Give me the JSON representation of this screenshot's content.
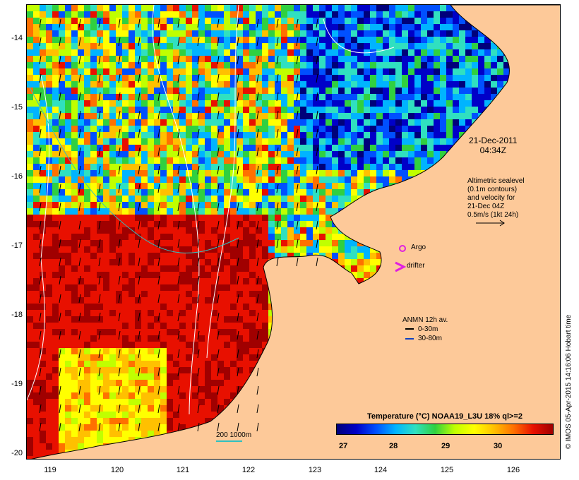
{
  "map": {
    "date_line1": "21-Dec-2011",
    "date_line2": "04:34Z",
    "altimetry_lines": [
      "Altimetric sealevel",
      "(0.1m contours)",
      "and velocity for",
      "21-Dec 04Z",
      "0.5m/s (1kt 24h)"
    ],
    "argo_label": "Argo",
    "drifter_label": "drifter",
    "anmn_title": "ANMN 12h av.",
    "anmn_legend": [
      "0-30m",
      "30-80m"
    ],
    "scale_label": "200  1000m",
    "y_ticks": [
      "-14",
      "-15",
      "-16",
      "-17",
      "-18",
      "-19",
      "-20"
    ],
    "x_ticks": [
      "119",
      "120",
      "121",
      "122",
      "123",
      "124",
      "125",
      "126"
    ],
    "colors": {
      "land": "#fdc999",
      "argo": "#e020e0",
      "drifter": "#e020e0",
      "anmn_shallow": "#000000",
      "anmn_deep": "#1040c0",
      "contour": "#ffffff",
      "isobath": "#30c0c0"
    }
  },
  "colorbar": {
    "title": "Temperature (°C) NOAA19_L3U 18% ql>=2",
    "ticks": [
      "27",
      "28",
      "29",
      "30"
    ],
    "stops": [
      "#00007a",
      "#0000c8",
      "#0050ff",
      "#00b4ff",
      "#30e0c0",
      "#30d040",
      "#c0ff00",
      "#ffff00",
      "#ffc000",
      "#ff7000",
      "#e81000",
      "#a00000"
    ]
  },
  "credit": "© IMOS 05-Apr-2015 14:16:06 Hobart time"
}
